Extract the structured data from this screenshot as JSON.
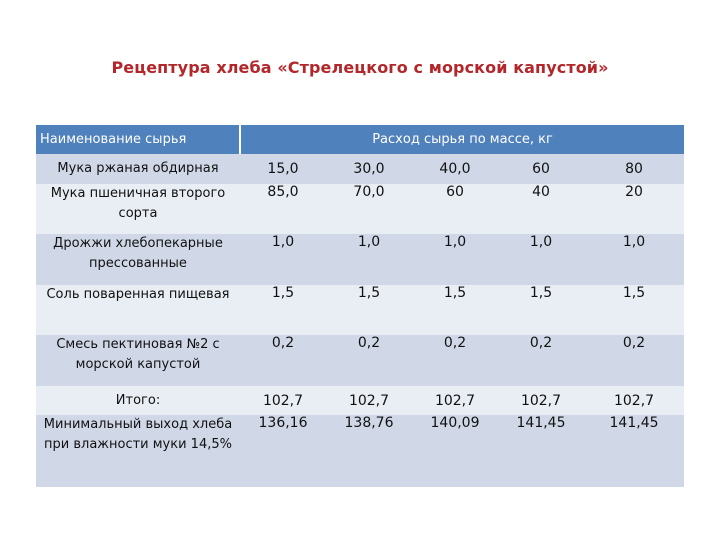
{
  "title": "Рецептура хлеба «Стрелецкого с морской капустой»",
  "table": {
    "header_name": "Наименование сырья",
    "header_spend": "Расход сырья по массе, кг",
    "rows": [
      {
        "name": "Мука ржаная обдирная",
        "values": [
          "15,0",
          "30,0",
          "40,0",
          "60",
          "80"
        ]
      },
      {
        "name": "Мука пшеничная второго сорта",
        "values": [
          "85,0",
          "70,0",
          "60",
          "40",
          "20"
        ]
      },
      {
        "name": "Дрожжи хлебопекарные прессованные",
        "values": [
          "1,0",
          "1,0",
          "1,0",
          "1,0",
          "1,0"
        ]
      },
      {
        "name": "Соль поваренная пищевая",
        "values": [
          "1,5",
          "1,5",
          "1,5",
          "1,5",
          "1,5"
        ]
      },
      {
        "name": "Смесь пектиновая №2 с морской капустой",
        "values": [
          "0,2",
          "0,2",
          "0,2",
          "0,2",
          "0,2"
        ]
      },
      {
        "name": "Итого:",
        "values": [
          "102,7",
          "102,7",
          "102,7",
          "102,7",
          "102,7"
        ]
      },
      {
        "name": "Минимальный выход хлеба при влажности муки 14,5%",
        "values": [
          "136,16",
          "138,76",
          "140,09",
          "141,45",
          "141,45"
        ]
      }
    ]
  },
  "colors": {
    "title": "#b3262a",
    "header_bg": "#4f81bd",
    "band_dark": "#d0d8e8",
    "band_light": "#e9edf4"
  }
}
